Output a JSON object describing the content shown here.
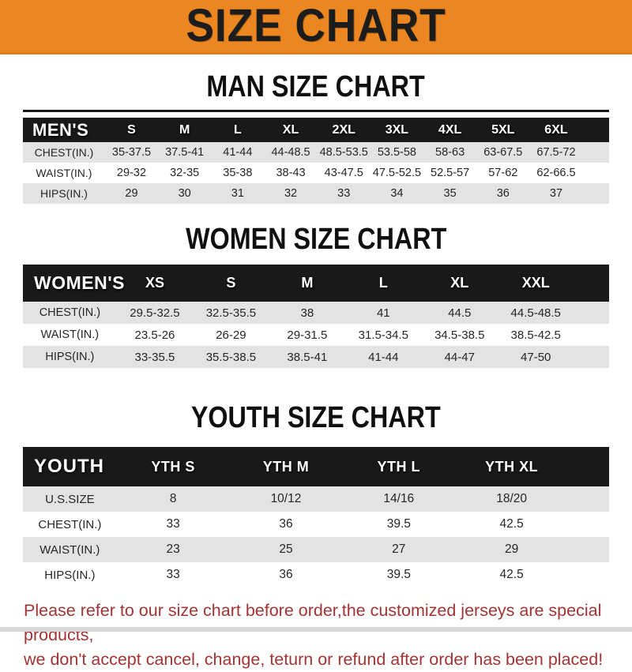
{
  "banner": {
    "title": "SIZE CHART",
    "bg_color": "#EB8620",
    "text_color": "#1C1C1C"
  },
  "colors": {
    "header_bar": "#191919",
    "header_text": "#FFFFFF",
    "stripe_gray": "#E3E3E3",
    "footer_red": "#A33434"
  },
  "sections": [
    {
      "heading": "MAN SIZE CHART",
      "label": "MEN'S",
      "columns": [
        "S",
        "M",
        "L",
        "XL",
        "2XL",
        "3XL",
        "4XL",
        "5XL",
        "6XL"
      ],
      "rows": [
        {
          "label": "CHEST(IN.)",
          "values": [
            "35-37.5",
            "37.5-41",
            "41-44",
            "44-48.5",
            "48.5-53.5",
            "53.5-58",
            "58-63",
            "63-67.5",
            "67.5-72"
          ]
        },
        {
          "label": "WAIST(IN.)",
          "values": [
            "29-32",
            "32-35",
            "35-38",
            "38-43",
            "43-47.5",
            "47.5-52.5",
            "52.5-57",
            "57-62",
            "62-66.5"
          ]
        },
        {
          "label": "HIPS(IN.)",
          "values": [
            "29",
            "30",
            "31",
            "32",
            "33",
            "34",
            "35",
            "36",
            "37"
          ]
        }
      ]
    },
    {
      "heading": "WOMEN SIZE CHART",
      "label": "WOMEN'S",
      "columns": [
        "XS",
        "S",
        "M",
        "L",
        "XL",
        "XXL"
      ],
      "rows": [
        {
          "label": "CHEST(IN.)",
          "values": [
            "29.5-32.5",
            "32.5-35.5",
            "38",
            "41",
            "44.5",
            "44.5-48.5"
          ]
        },
        {
          "label": "WAIST(IN.)",
          "values": [
            "23.5-26",
            "26-29",
            "29-31.5",
            "31.5-34.5",
            "34.5-38.5",
            "38.5-42.5"
          ]
        },
        {
          "label": "HIPS(IN.)",
          "values": [
            "33-35.5",
            "35.5-38.5",
            "38.5-41",
            "41-44",
            "44-47",
            "47-50"
          ]
        }
      ]
    },
    {
      "heading": "YOUTH SIZE CHART",
      "label": "YOUTH",
      "columns": [
        "YTH S",
        "YTH M",
        "YTH L",
        "YTH XL"
      ],
      "rows": [
        {
          "label": "U.S.SIZE",
          "values": [
            "8",
            "10/12",
            "14/16",
            "18/20"
          ]
        },
        {
          "label": "CHEST(IN.)",
          "values": [
            "33",
            "36",
            "39.5",
            "42.5"
          ]
        },
        {
          "label": "WAIST(IN.)",
          "values": [
            "23",
            "25",
            "27",
            "29"
          ]
        },
        {
          "label": "HIPS(IN.)",
          "values": [
            "33",
            "36",
            "39.5",
            "42.5"
          ]
        }
      ]
    }
  ],
  "footer": {
    "line1": "Please refer to our size chart before order,the customized jerseys are special products,",
    "line2": "we don't accept cancel, change, teturn or refund after order has been placed!"
  }
}
